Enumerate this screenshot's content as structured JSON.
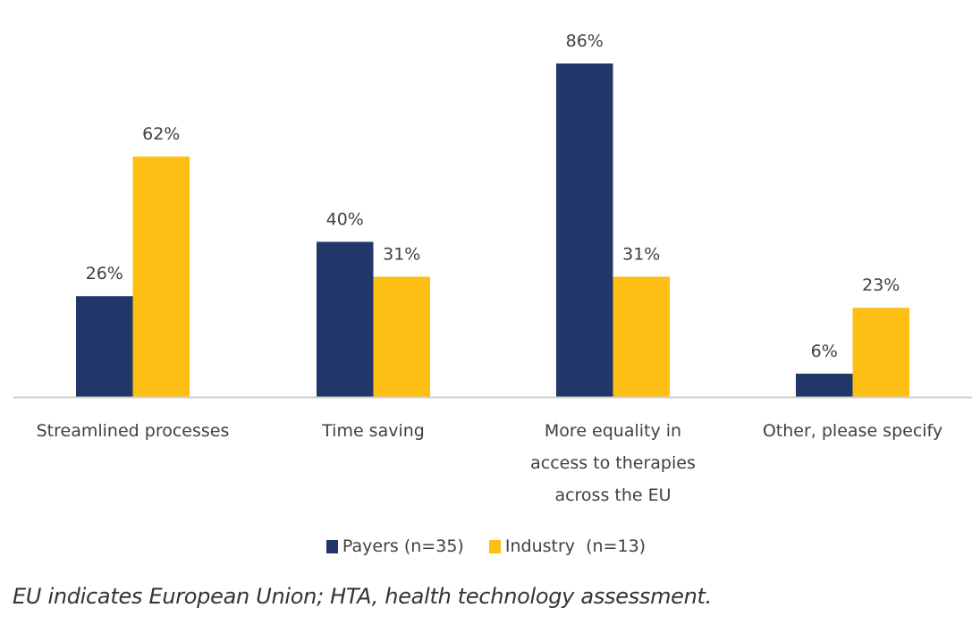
{
  "chart_data": {
    "type": "bar",
    "title": "",
    "xlabel": "",
    "ylabel": "",
    "ylim": [
      0,
      100
    ],
    "grid": false,
    "legend_position": "bottom-center",
    "categories": [
      [
        "Streamlined processes"
      ],
      [
        "Time saving"
      ],
      [
        "More equality in",
        "access to therapies",
        "across the EU"
      ],
      [
        "Other, please specify"
      ]
    ],
    "category_names": [
      "Streamlined processes",
      "Time saving",
      "More equality in access to therapies across the EU",
      "Other, please specify"
    ],
    "series": [
      {
        "name": "Payers (n=35)",
        "color": "#22366A",
        "values": [
          26,
          40,
          86,
          6
        ],
        "labels": [
          "26%",
          "40%",
          "86%",
          "6%"
        ]
      },
      {
        "name": "Industry  (n=13)",
        "color": "#FDBF14",
        "values": [
          62,
          31,
          31,
          23
        ],
        "labels": [
          "62%",
          "31%",
          "31%",
          "23%"
        ]
      }
    ]
  },
  "legend": {
    "items": [
      {
        "label": "Payers (n=35)",
        "color": "#22366A"
      },
      {
        "label": "Industry  (n=13)",
        "color": "#FDBF14"
      }
    ]
  },
  "caption": "EU indicates European Union; HTA, health technology assessment."
}
